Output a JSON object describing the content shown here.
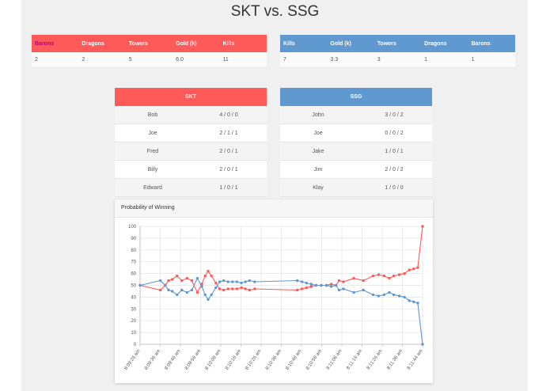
{
  "page": {
    "title": "SKT vs. SSG"
  },
  "skt_stats": {
    "headers": [
      "Barons",
      "Dragons",
      "Towers",
      "Gold (k)",
      "Kills"
    ],
    "values": [
      "2",
      "2",
      "5",
      "6.0",
      "11"
    ]
  },
  "ssg_stats": {
    "headers": [
      "Kills",
      "Gold (k)",
      "Towers",
      "Dragons",
      "Barons"
    ],
    "values": [
      "7",
      "3.3",
      "3",
      "1",
      "1"
    ]
  },
  "skt_roster": {
    "team": "SKT",
    "players": [
      {
        "name": "Bob",
        "kda": "4 / 0 / 0"
      },
      {
        "name": "Joe",
        "kda": "2 / 1 / 1"
      },
      {
        "name": "Fred",
        "kda": "2 / 0 / 1"
      },
      {
        "name": "Billy",
        "kda": "2 / 0 / 1"
      },
      {
        "name": "Edward",
        "kda": "1 / 0 / 1"
      }
    ]
  },
  "ssg_roster": {
    "team": "SSG",
    "players": [
      {
        "name": "John",
        "kda": "3 / 0 / 2"
      },
      {
        "name": "Joe",
        "kda": "0 / 0 / 2"
      },
      {
        "name": "Jake",
        "kda": "1 / 0 / 1"
      },
      {
        "name": "Jim",
        "kda": "2 / 0 / 2"
      },
      {
        "name": "Klay",
        "kda": "1 / 0 / 0"
      }
    ]
  },
  "colors": {
    "skt": "#ff5a5a",
    "ssg": "#6098d0",
    "gold": "#f2c200",
    "barons_skt": "#b0007a",
    "barons_ssg": "#6a1b9a"
  },
  "chart_panel": {
    "title": "Probability of Winning"
  },
  "chart_data": {
    "type": "line",
    "title": "Probability of Winning",
    "x_ticks": [
      "8:09:26 am",
      "8:09:36 am",
      "8:09:46 am",
      "8:09:56 am",
      "8:10:06 am",
      "8:10:16 am",
      "8:10:26 am",
      "8:10:36 am",
      "8:10:46 am",
      "8:10:56 am",
      "8:11:06 am",
      "8:11:16 am",
      "8:11:26 am",
      "8:11:36 am",
      "8:11:44 am"
    ],
    "y_ticks": [
      0,
      10,
      20,
      30,
      40,
      50,
      60,
      70,
      80,
      90,
      100
    ],
    "ylim": [
      0,
      100
    ],
    "grid": true,
    "series": [
      {
        "color": "#ff5a5a",
        "points": [
          [
            0,
            50
          ],
          [
            5.5,
            46
          ],
          [
            6.8,
            50
          ],
          [
            7.7,
            54
          ],
          [
            8.7,
            55
          ],
          [
            10,
            58
          ],
          [
            11.3,
            54
          ],
          [
            12.7,
            56
          ],
          [
            14,
            54
          ],
          [
            15.5,
            44
          ],
          [
            16.7,
            51
          ],
          [
            17.6,
            58
          ],
          [
            18.4,
            62
          ],
          [
            19.3,
            58
          ],
          [
            20.5,
            52
          ],
          [
            21.5,
            47
          ],
          [
            22.6,
            46
          ],
          [
            23.8,
            47
          ],
          [
            25,
            47
          ],
          [
            26.2,
            47
          ],
          [
            27.4,
            48
          ],
          [
            28.5,
            47
          ],
          [
            29.6,
            46
          ],
          [
            31,
            47
          ],
          [
            42.5,
            46
          ],
          [
            43.8,
            47
          ],
          [
            45,
            48
          ],
          [
            46.3,
            49
          ],
          [
            47.6,
            50
          ],
          [
            49,
            50
          ],
          [
            50.4,
            50
          ],
          [
            51.7,
            51
          ],
          [
            53,
            50
          ],
          [
            53.8,
            54
          ],
          [
            55,
            53
          ],
          [
            57.8,
            56
          ],
          [
            60.4,
            54
          ],
          [
            63,
            58
          ],
          [
            64.5,
            59
          ],
          [
            66,
            58
          ],
          [
            67.4,
            56
          ],
          [
            68.6,
            58
          ],
          [
            70.1,
            59
          ],
          [
            71.5,
            60
          ],
          [
            72.8,
            63
          ],
          [
            74,
            64
          ],
          [
            75.1,
            65
          ],
          [
            76.4,
            100
          ]
        ]
      },
      {
        "color": "#6098d0",
        "points": [
          [
            0,
            50
          ],
          [
            5.5,
            54
          ],
          [
            6.8,
            50
          ],
          [
            7.7,
            46
          ],
          [
            8.7,
            45
          ],
          [
            10,
            42
          ],
          [
            11.3,
            46
          ],
          [
            12.7,
            44
          ],
          [
            14,
            46
          ],
          [
            15.5,
            56
          ],
          [
            16.7,
            49
          ],
          [
            17.6,
            42
          ],
          [
            18.4,
            38
          ],
          [
            19.3,
            42
          ],
          [
            20.5,
            48
          ],
          [
            21.5,
            53
          ],
          [
            22.6,
            54
          ],
          [
            23.8,
            53
          ],
          [
            25,
            53
          ],
          [
            26.2,
            53
          ],
          [
            27.4,
            52
          ],
          [
            28.5,
            53
          ],
          [
            29.6,
            54
          ],
          [
            31,
            53
          ],
          [
            42.5,
            54
          ],
          [
            43.8,
            53
          ],
          [
            45,
            52
          ],
          [
            46.3,
            51
          ],
          [
            47.6,
            50
          ],
          [
            49,
            50
          ],
          [
            50.4,
            50
          ],
          [
            51.7,
            49
          ],
          [
            53,
            50
          ],
          [
            53.8,
            46
          ],
          [
            55,
            47
          ],
          [
            57.8,
            44
          ],
          [
            60.4,
            46
          ],
          [
            63,
            42
          ],
          [
            64.5,
            41
          ],
          [
            66,
            42
          ],
          [
            67.4,
            44
          ],
          [
            68.6,
            42
          ],
          [
            70.1,
            41
          ],
          [
            71.5,
            40
          ],
          [
            72.8,
            37
          ],
          [
            74,
            36
          ],
          [
            75.1,
            35
          ],
          [
            76.4,
            0
          ]
        ]
      }
    ]
  }
}
